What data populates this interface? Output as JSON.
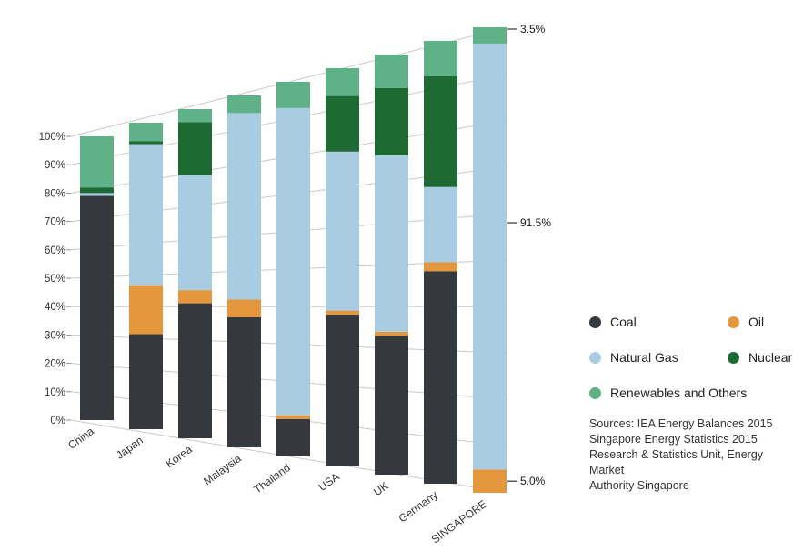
{
  "chart_data": {
    "type": "bar",
    "variant": "perspective-stacked-100pct",
    "categories": [
      "China",
      "Japan",
      "Korea",
      "Malaysia",
      "Thailand",
      "USA",
      "UK",
      "Germany",
      "SINGAPORE"
    ],
    "series": [
      {
        "name": "Coal",
        "color": "#35393d",
        "values": [
          79,
          31,
          41,
          37,
          10,
          38,
          33,
          48,
          0
        ]
      },
      {
        "name": "Oil",
        "color": "#e5973e",
        "values": [
          0,
          16,
          4,
          5,
          1,
          1,
          1,
          2,
          5
        ]
      },
      {
        "name": "Natural Gas",
        "color": "#a8cde2",
        "values": [
          1,
          46,
          35,
          53,
          82,
          40,
          42,
          17,
          91.5
        ]
      },
      {
        "name": "Nuclear",
        "color": "#1d6a33",
        "values": [
          2,
          1,
          16,
          0,
          0,
          14,
          16,
          25,
          0
        ]
      },
      {
        "name": "Renewables and Others",
        "color": "#5fb287",
        "values": [
          18,
          6,
          4,
          5,
          7,
          7,
          8,
          8,
          3.5
        ]
      }
    ],
    "y_ticks": [
      "0%",
      "10%",
      "20%",
      "30%",
      "40%",
      "50%",
      "60%",
      "70%",
      "80%",
      "90%",
      "100%"
    ],
    "y_range": [
      0,
      100
    ],
    "grid": true,
    "legend_position": "right",
    "annotations": [
      "3.5%",
      "91.5%",
      "5.0%"
    ]
  },
  "sources": {
    "lines": [
      "Sources: IEA Energy Balances 2015",
      "Singapore Energy Statistics 2015",
      "Research & Statistics Unit, Energy Market",
      "Authority Singapore"
    ]
  }
}
